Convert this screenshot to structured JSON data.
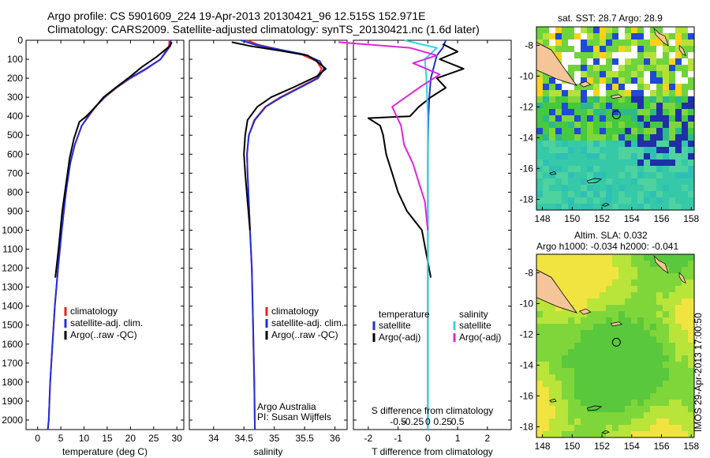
{
  "header": {
    "line1": "Argo profile: CS 5901609_224 19-Apr-2013 20130421_96 12.515S 152.971E",
    "line2": "Climatology: CARS2009. Satellite-adjusted climatology: synTS_20130421.nc (1.6d later)"
  },
  "stamp": "IMOS 29-Apr-2013 17:00:50",
  "credit": {
    "line1": "Argo Australia",
    "line2": "PI: Susan Wijffels"
  },
  "colors": {
    "climatology": "#e8231c",
    "satellite": "#1f2fe0",
    "argo": "#000000",
    "sat_salinity": "#2fd6e0",
    "argo_salinity_adj": "#e024e0"
  },
  "chart_data": [
    {
      "type": "line",
      "name": "temperature-profile",
      "xlabel": "temperature (deg C)",
      "xlim": [
        -2.5,
        31.5
      ],
      "xticks": [
        0,
        5,
        10,
        15,
        20,
        25,
        30
      ],
      "ylim": [
        0,
        2050
      ],
      "yticks": [
        0,
        100,
        200,
        300,
        400,
        500,
        600,
        700,
        800,
        900,
        1000,
        1100,
        1200,
        1300,
        1400,
        1500,
        1600,
        1700,
        1800,
        1900,
        2000
      ],
      "legend": [
        "climatology",
        "satellite-adj. clim.",
        "Argo(..raw -QC)"
      ],
      "series": [
        {
          "name": "climatology",
          "color": "#e8231c",
          "x": [
            28.4,
            28.3,
            26.5,
            23.5,
            20,
            17,
            14.5,
            12.5,
            11,
            9.5,
            8,
            7,
            6.1,
            5.2,
            4.4,
            3.7,
            3.2,
            2.7,
            2.4,
            2.2
          ],
          "y": [
            0,
            30,
            100,
            150,
            200,
            250,
            300,
            350,
            400,
            450,
            550,
            650,
            800,
            1000,
            1200,
            1400,
            1600,
            1800,
            2000,
            2050
          ]
        },
        {
          "name": "satellite-adj. clim.",
          "color": "#1f2fe0",
          "x": [
            28.7,
            28.6,
            26.5,
            23.3,
            19.8,
            16.9,
            14.4,
            12.4,
            10.9,
            9.5,
            8,
            7,
            6.1,
            5.2,
            4.4,
            3.7,
            3.2,
            2.7,
            2.4,
            2.2
          ],
          "y": [
            0,
            30,
            100,
            150,
            200,
            250,
            300,
            350,
            400,
            450,
            550,
            650,
            800,
            1000,
            1200,
            1400,
            1600,
            1800,
            2000,
            2050
          ]
        },
        {
          "name": "Argo(..raw -QC)",
          "color": "#000000",
          "x": [
            28.9,
            28.5,
            25.5,
            22.5,
            19.5,
            16.8,
            14.2,
            12.5,
            10.5,
            9,
            7.8,
            6.9,
            6.1,
            5.3,
            4.5,
            3.8
          ],
          "y": [
            10,
            30,
            90,
            140,
            200,
            250,
            300,
            350,
            400,
            430,
            520,
            620,
            760,
            900,
            1100,
            1250
          ]
        }
      ]
    },
    {
      "type": "line",
      "name": "salinity-profile",
      "xlabel": "salinity",
      "xlim": [
        33.6,
        36.2
      ],
      "xticks": [
        34,
        34.5,
        35,
        35.5,
        36
      ],
      "legend": [
        "climatology",
        "satellite-adj. clim.",
        "Argo(..raw -QC)"
      ],
      "series": [
        {
          "name": "climatology",
          "color": "#e8231c",
          "x": [
            34.55,
            34.75,
            35.1,
            35.45,
            35.7,
            35.78,
            35.7,
            35.4,
            35.1,
            34.85,
            34.67,
            34.58,
            34.55,
            34.56,
            34.58,
            34.6,
            34.63,
            34.65,
            34.67,
            34.68
          ],
          "y": [
            0,
            25,
            50,
            75,
            110,
            150,
            200,
            250,
            300,
            350,
            420,
            500,
            600,
            700,
            850,
            1000,
            1200,
            1500,
            1800,
            2050
          ]
        },
        {
          "name": "satellite-adj. clim.",
          "color": "#1f2fe0",
          "x": [
            34.45,
            34.7,
            35.1,
            35.5,
            35.75,
            35.82,
            35.72,
            35.42,
            35.12,
            34.86,
            34.68,
            34.58,
            34.55,
            34.56,
            34.58,
            34.6,
            34.63,
            34.65,
            34.67,
            34.68
          ],
          "y": [
            0,
            25,
            50,
            75,
            110,
            150,
            200,
            250,
            300,
            350,
            420,
            500,
            600,
            700,
            850,
            1000,
            1200,
            1500,
            1800,
            2050
          ]
        },
        {
          "name": "Argo(..raw -QC)",
          "color": "#000000",
          "x": [
            34.3,
            34.6,
            35.1,
            35.55,
            35.7,
            35.85,
            35.7,
            35.3,
            34.95,
            34.72,
            34.56,
            34.52,
            34.5,
            34.52,
            34.56,
            34.6
          ],
          "y": [
            10,
            30,
            55,
            80,
            110,
            150,
            190,
            250,
            300,
            350,
            420,
            500,
            600,
            700,
            850,
            1000
          ]
        }
      ]
    },
    {
      "type": "line",
      "name": "difference-profile",
      "xlabel": "T difference from climatology",
      "xlabel2": "S difference from climatology",
      "xlim": [
        -2.5,
        2.8
      ],
      "xticks": [
        -2,
        -1,
        0,
        1,
        2
      ],
      "sticks": [
        -0.5,
        -0.25,
        0,
        0.25,
        0.5
      ],
      "legend_headers": [
        "temperature",
        "salinity"
      ],
      "legend": [
        "satellite",
        "Argo(-adj)",
        "satellite",
        "Argo(-adj)"
      ],
      "series": [
        {
          "name": "satellite",
          "color": "#1f2fe0",
          "x": [
            0.6,
            0.5,
            0.3,
            0.2,
            0.1,
            0.05,
            0.02,
            0,
            0,
            0
          ],
          "y": [
            0,
            40,
            80,
            140,
            200,
            300,
            400,
            600,
            1000,
            2050
          ]
        },
        {
          "name": "Argo(-adj)",
          "color": "#000000",
          "x": [
            0.5,
            1.0,
            0.4,
            1.2,
            0.3,
            0.6,
            0.1,
            -0.3,
            -0.6,
            -2.0,
            -1.6,
            -1.5,
            -1.4,
            -1.2,
            -1.0,
            -0.7,
            -0.2,
            0.1
          ],
          "y": [
            20,
            60,
            100,
            150,
            200,
            250,
            300,
            350,
            400,
            410,
            450,
            500,
            600,
            700,
            800,
            900,
            1000,
            1250
          ]
        },
        {
          "name": "satellite",
          "color": "#2fd6e0",
          "x": [
            -0.8,
            0.3,
            -0.1,
            -0.05,
            0,
            0,
            0,
            0
          ],
          "y": [
            0,
            40,
            100,
            200,
            400,
            800,
            1200,
            2050
          ]
        },
        {
          "name": "Argo(-adj)",
          "color": "#e024e0",
          "x": [
            -3.0,
            -0.6,
            0.3,
            -0.5,
            0.4,
            -0.2,
            -1.2,
            -0.9,
            -0.8,
            -0.5,
            -0.3,
            -0.1,
            0
          ],
          "y": [
            10,
            40,
            80,
            120,
            180,
            240,
            350,
            450,
            550,
            650,
            750,
            850,
            1000
          ]
        }
      ]
    },
    {
      "type": "heatmap",
      "name": "sst-map",
      "title": "sat. SST: 28.7 Argo: 28.9",
      "xticks": [
        148,
        150,
        152,
        154,
        156,
        158
      ],
      "yticks": [
        -8,
        -10,
        -12,
        -14,
        -16,
        -18
      ],
      "xlim": [
        147.6,
        158.2
      ],
      "ylim": [
        -18.7,
        -6.8
      ],
      "argo_position": {
        "lon": 152.971,
        "lat": -12.515
      }
    },
    {
      "type": "heatmap",
      "name": "sla-map",
      "title": "Altim. SLA: 0.032",
      "subtitle": "Argo h1000: -0.034 h2000: -0.041",
      "xticks": [
        148,
        150,
        152,
        154,
        156,
        158
      ],
      "yticks": [
        -8,
        -10,
        -12,
        -14,
        -16,
        -18
      ],
      "xlim": [
        147.6,
        158.2
      ],
      "ylim": [
        -18.7,
        -6.8
      ],
      "argo_position": {
        "lon": 152.971,
        "lat": -12.515
      }
    }
  ]
}
